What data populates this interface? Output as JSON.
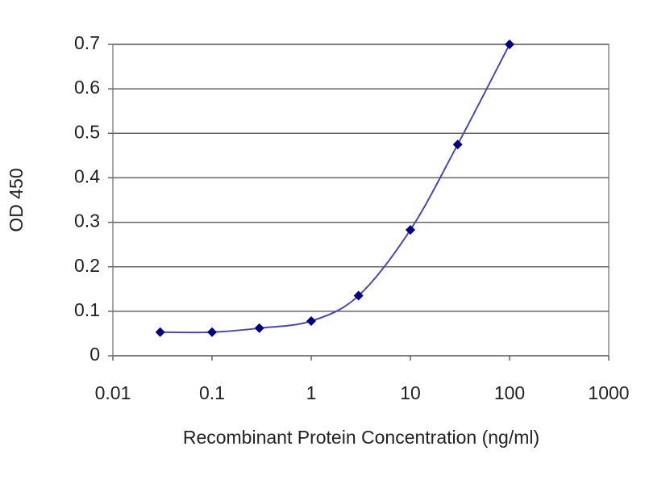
{
  "chart_data": {
    "type": "line",
    "x_label": "Recombinant Protein Concentration (ng/ml)",
    "y_label": "OD 450",
    "x": [
      0.03,
      0.1,
      0.3,
      1,
      3,
      10,
      30,
      100
    ],
    "series": [
      {
        "color": "#000080",
        "line_color": "#4a4aa8",
        "values": [
          0.053,
          0.053,
          0.062,
          0.078,
          0.135,
          0.283,
          0.475,
          0.7
        ]
      }
    ],
    "xscale": "log",
    "xlim": [
      0.01,
      1000
    ],
    "xticks": [
      0.01,
      0.1,
      1,
      10,
      100,
      1000
    ],
    "ylim": [
      0,
      0.7
    ],
    "yticks": [
      0,
      0.1,
      0.2,
      0.3,
      0.4,
      0.5,
      0.6,
      0.7
    ],
    "grid": true
  }
}
